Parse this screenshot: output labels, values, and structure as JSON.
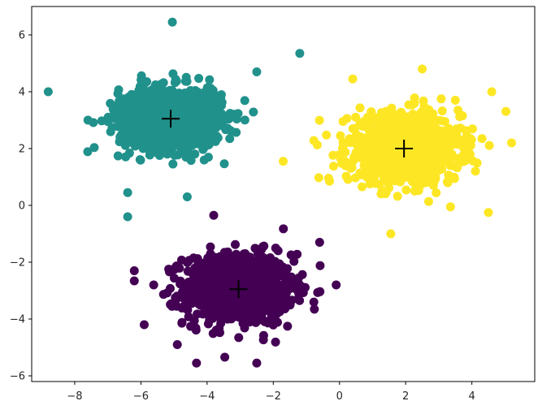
{
  "chart_data": {
    "type": "scatter",
    "title": "",
    "xlabel": "",
    "ylabel": "",
    "xlim": [
      -9.3,
      5.9
    ],
    "ylim": [
      -6.2,
      7.0
    ],
    "x_ticks": [
      -8,
      -6,
      -4,
      -2,
      0,
      2,
      4
    ],
    "y_ticks": [
      -6,
      -4,
      -2,
      0,
      2,
      4,
      6
    ],
    "x_tick_labels": [
      "−8",
      "−6",
      "−4",
      "−2",
      "0",
      "2",
      "4"
    ],
    "y_tick_labels": [
      "−6",
      "−4",
      "−2",
      "0",
      "2",
      "4",
      "6"
    ],
    "grid": false,
    "legend": "none",
    "series": [
      {
        "color": "#440154",
        "center": [
          -3.05,
          -2.95
        ],
        "spread": [
          0.82,
          0.62
        ],
        "n_points": 1000,
        "x_range": [
          -6.2,
          -0.1
        ],
        "y_range": [
          -5.55,
          -0.35
        ],
        "outliers": [
          [
            -6.2,
            -2.3
          ],
          [
            -0.6,
            -1.3
          ],
          [
            -0.1,
            -2.8
          ],
          [
            -3.8,
            -0.35
          ],
          [
            -2.5,
            -5.55
          ],
          [
            -5.9,
            -4.2
          ],
          [
            -4.9,
            -4.9
          ]
        ]
      },
      {
        "color": "#21918c",
        "center": [
          -5.1,
          3.05
        ],
        "spread": [
          0.78,
          0.55
        ],
        "n_points": 1000,
        "x_range": [
          -8.8,
          -1.2
        ],
        "y_range": [
          -0.4,
          6.45
        ],
        "outliers": [
          [
            -8.8,
            4.0
          ],
          [
            -1.2,
            5.35
          ],
          [
            -6.4,
            -0.4
          ],
          [
            -5.05,
            6.45
          ],
          [
            -2.5,
            4.7
          ],
          [
            -6.4,
            0.45
          ],
          [
            -7.6,
            3.0
          ],
          [
            -4.6,
            0.3
          ]
        ]
      },
      {
        "color": "#fde725",
        "center": [
          1.95,
          2.0
        ],
        "spread": [
          0.85,
          0.6
        ],
        "n_points": 1000,
        "x_range": [
          -1.7,
          5.2
        ],
        "y_range": [
          -1.0,
          4.8
        ],
        "outliers": [
          [
            -1.7,
            1.55
          ],
          [
            5.2,
            2.2
          ],
          [
            4.5,
            -0.25
          ],
          [
            2.5,
            4.8
          ],
          [
            1.55,
            -1.0
          ],
          [
            0.4,
            4.45
          ],
          [
            -0.3,
            0.85
          ],
          [
            4.6,
            4.0
          ]
        ]
      }
    ],
    "centroids": {
      "marker": "+",
      "color": "#000000",
      "points": [
        [
          -3.05,
          -2.95
        ],
        [
          -5.1,
          3.05
        ],
        [
          1.95,
          2.0
        ]
      ]
    }
  }
}
